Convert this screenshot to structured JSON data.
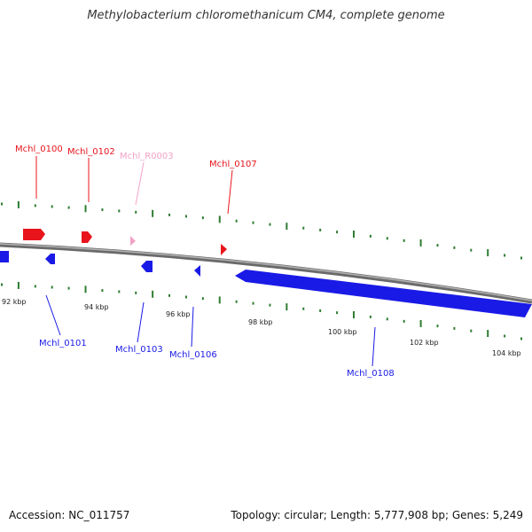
{
  "title": "Methylobacterium chloromethanicum CM4, complete genome",
  "footer": {
    "accession": "Accession: NC_011757",
    "summary": "Topology: circular; Length: 5,777,908 bp; Genes: 5,249"
  },
  "colors": {
    "backbone": "#8c8c8c",
    "forward_gene": "#e8141c",
    "rna_gene": "#f2a2c6",
    "reverse_gene": "#1a1ae6",
    "tick": "#2e7d32",
    "scale_label": "#222222"
  },
  "scale_labels": [
    {
      "text": "92 kbp"
    },
    {
      "text": "94 kbp"
    },
    {
      "text": "96 kbp"
    },
    {
      "text": "98 kbp"
    },
    {
      "text": "100 kbp"
    },
    {
      "text": "102 kbp"
    },
    {
      "text": "104 kbp"
    }
  ],
  "genes_forward": [
    {
      "name": "Mchl_0100",
      "type": "cds"
    },
    {
      "name": "Mchl_0102",
      "type": "cds"
    },
    {
      "name": "Mchl_R0003",
      "type": "rna"
    },
    {
      "name": "Mchl_0107",
      "type": "cds"
    }
  ],
  "genes_reverse": [
    {
      "name": "Mchl_0101"
    },
    {
      "name": "Mchl_0103"
    },
    {
      "name": "Mchl_0106"
    },
    {
      "name": "Mchl_0108"
    }
  ]
}
